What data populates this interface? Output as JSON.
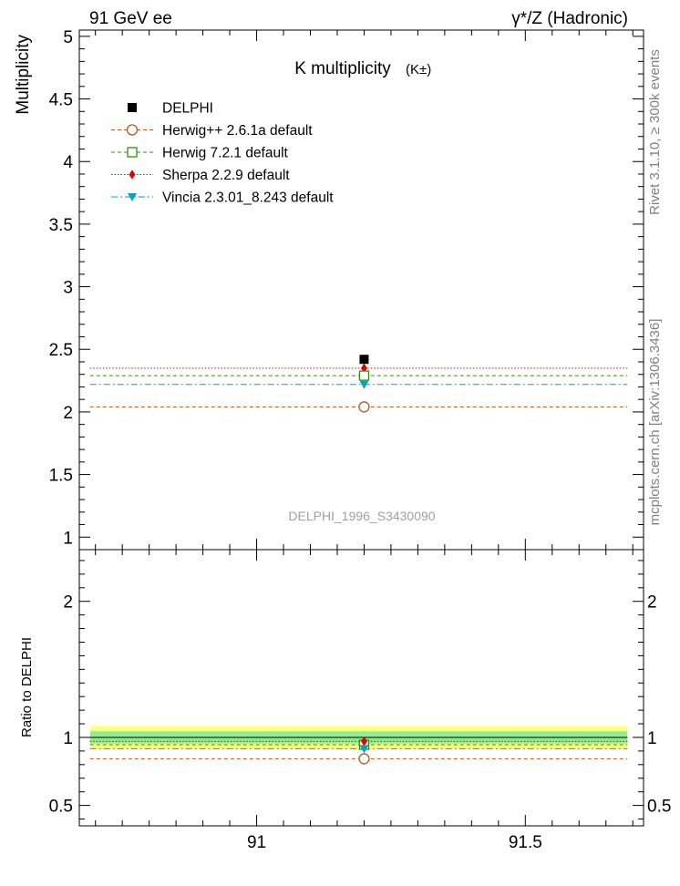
{
  "header": {
    "left": "91 GeV ee",
    "right": "γ*/Z (Hadronic)"
  },
  "side_labels": {
    "rivet": "Rivet 3.1.10, ≥ 300k events",
    "mcplots": "mcplots.cern.ch [arXiv:1306.3436]"
  },
  "colors": {
    "data": "#000000",
    "herwigpp": "#b35a1f",
    "herwig7": "#3a8a1a",
    "sherpa": "#e00000",
    "vincia": "#0aa0c0",
    "band_inner": "#90ee90",
    "band_outer": "#ffff80"
  },
  "chart_data": [
    {
      "type": "scatter",
      "title": "K multiplicity",
      "title_suffix": "(K±)",
      "ylabel": "Multiplicity",
      "watermark": "DELPHI_1996_S3430090",
      "xlim": [
        90.67,
        91.72
      ],
      "ylim": [
        0.9,
        5.05
      ],
      "yticks": [
        {
          "v": 1,
          "label": "1"
        },
        {
          "v": 1.5,
          "label": "1.5"
        },
        {
          "v": 2,
          "label": "2"
        },
        {
          "v": 2.5,
          "label": "2.5"
        },
        {
          "v": 3,
          "label": "3"
        },
        {
          "v": 3.5,
          "label": "3.5"
        },
        {
          "v": 4,
          "label": "4"
        },
        {
          "v": 4.5,
          "label": "4.5"
        },
        {
          "v": 5,
          "label": "5"
        }
      ],
      "x_range_line": [
        90.69,
        91.69
      ],
      "x_point": 91.2,
      "legend": [
        {
          "key": "data",
          "label": "DELPHI"
        },
        {
          "key": "herwigpp",
          "label": "Herwig++ 2.6.1a default"
        },
        {
          "key": "herwig7",
          "label": "Herwig 7.2.1 default"
        },
        {
          "key": "sherpa",
          "label": "Sherpa 2.2.9 default"
        },
        {
          "key": "vincia",
          "label": "Vincia 2.3.01_8.243 default"
        }
      ],
      "series": [
        {
          "key": "data",
          "name": "DELPHI",
          "y": 2.42,
          "marker": "square-filled"
        },
        {
          "key": "herwigpp",
          "name": "Herwig++ 2.6.1a default",
          "y": 2.04,
          "marker": "circle-open",
          "dash": "4,3"
        },
        {
          "key": "herwig7",
          "name": "Herwig 7.2.1 default",
          "y": 2.29,
          "marker": "square-open",
          "dash": "4,3"
        },
        {
          "key": "sherpa",
          "name": "Sherpa 2.2.9 default",
          "y": 2.35,
          "marker": "diamond-filled",
          "dash": "1.5,2"
        },
        {
          "key": "vincia",
          "name": "Vincia 2.3.01_8.243 default",
          "y": 2.22,
          "marker": "triangle-down-filled",
          "dash": "7,3,2,3"
        }
      ]
    },
    {
      "type": "scatter",
      "ylabel": "Ratio to DELPHI",
      "ylim": [
        0.35,
        2.38
      ],
      "yticks": [
        {
          "v": 0.5,
          "label": "0.5"
        },
        {
          "v": 1,
          "label": "1"
        },
        {
          "v": 2,
          "label": "2"
        }
      ],
      "xticks": [
        {
          "v": 91,
          "label": "91"
        },
        {
          "v": 91.5,
          "label": "91.5"
        }
      ],
      "band_inner": [
        0.955,
        1.045
      ],
      "band_outer": [
        0.915,
        1.085
      ],
      "series": [
        {
          "key": "data",
          "y": 1.0
        },
        {
          "key": "herwigpp",
          "y": 0.843
        },
        {
          "key": "herwig7",
          "y": 0.946
        },
        {
          "key": "sherpa",
          "y": 0.971
        },
        {
          "key": "vincia",
          "y": 0.917
        }
      ]
    }
  ]
}
